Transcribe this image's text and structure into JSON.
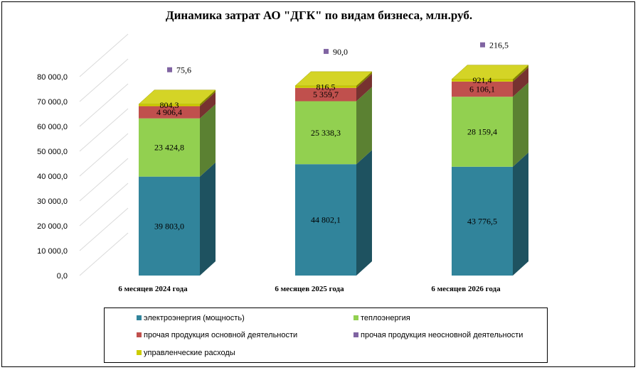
{
  "chart_data": {
    "type": "bar",
    "stacked": true,
    "three_d": true,
    "title": "Динамика затрат АО \"ДГК\" по видам  бизнеса, млн.руб.",
    "categories": [
      "6 месяцев 2024 года",
      "6 месяцев 2025 года",
      "6 месяцев 2026 года"
    ],
    "ylim": [
      0,
      80000
    ],
    "yticks": [
      "0,0",
      "10 000,0",
      "20 000,0",
      "30 000,0",
      "40 000,0",
      "50 000,0",
      "60 000,0",
      "70 000,0",
      "80 000,0"
    ],
    "grid": true,
    "legend_position": "bottom",
    "series": [
      {
        "name": "электроэнергия (мощность)",
        "color": "#31849b",
        "values": [
          39803.0,
          44802.1,
          43776.5
        ],
        "labels": [
          "39 803,0",
          "44 802,1",
          "43 776,5"
        ]
      },
      {
        "name": "теплоэнергия",
        "color": "#92d050",
        "values": [
          23424.8,
          25338.3,
          28159.4
        ],
        "labels": [
          "23 424,8",
          "25 338,3",
          "28 159,4"
        ]
      },
      {
        "name": "прочая продукция основной деятельности",
        "color": "#c0504d",
        "values": [
          4906.4,
          5359.7,
          6106.1
        ],
        "labels": [
          "4 906,4",
          "5 359,7",
          "6 106,1"
        ]
      },
      {
        "name": "прочая продукция неосновной деятельности",
        "color": "#8064a2",
        "values": [
          75.6,
          90.0,
          216.5
        ],
        "labels": [
          "75,6",
          "90,0",
          "216,5"
        ]
      },
      {
        "name": "управленческие расходы",
        "color": "#cccc00",
        "values": [
          804.3,
          816.5,
          921.4
        ],
        "labels": [
          "804,3",
          "816,5",
          "921,4"
        ]
      }
    ]
  }
}
